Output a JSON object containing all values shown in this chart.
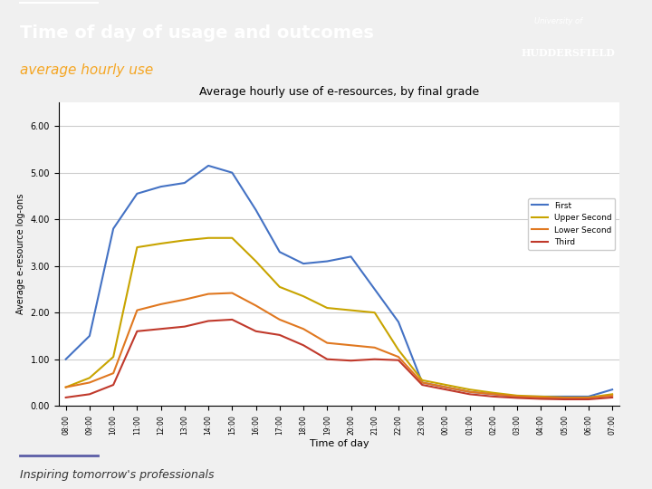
{
  "title_main": "Time of day of usage and outcomes",
  "title_sub": "average hourly use",
  "header_bg": "#5b5ea6",
  "footer_text": "Inspiring tomorrow's professionals",
  "chart_title": "Average hourly use of e-resources, by final grade",
  "xlabel": "Time of day",
  "ylabel": "Average e-resource log-ons",
  "ylim": [
    0,
    6.5
  ],
  "yticks": [
    0.0,
    1.0,
    2.0,
    3.0,
    4.0,
    5.0,
    6.0
  ],
  "time_labels": [
    "08:00",
    "09:00",
    "10:00",
    "11:00",
    "12:00",
    "13:00",
    "14:00",
    "15:00",
    "16:00",
    "17:00",
    "18:00",
    "19:00",
    "20:00",
    "21:00",
    "22:00",
    "23:00",
    "00:00",
    "01:00",
    "02:00",
    "03:00",
    "04:00",
    "05:00",
    "06:00",
    "07:00"
  ],
  "series": {
    "First": {
      "color": "#4472c4",
      "values": [
        1.0,
        1.5,
        3.8,
        4.55,
        4.7,
        4.78,
        5.15,
        5.0,
        4.2,
        3.3,
        3.05,
        3.1,
        3.2,
        2.5,
        1.8,
        0.5,
        0.4,
        0.3,
        0.25,
        0.2,
        0.2,
        0.2,
        0.2,
        0.35
      ]
    },
    "Upper Second": {
      "color": "#c8a400",
      "values": [
        0.4,
        0.6,
        1.05,
        3.4,
        3.48,
        3.55,
        3.6,
        3.6,
        3.1,
        2.55,
        2.35,
        2.1,
        2.05,
        2.0,
        1.2,
        0.55,
        0.45,
        0.35,
        0.28,
        0.22,
        0.2,
        0.18,
        0.18,
        0.25
      ]
    },
    "Lower Second": {
      "color": "#e07820",
      "values": [
        0.4,
        0.5,
        0.7,
        2.05,
        2.18,
        2.28,
        2.4,
        2.42,
        2.15,
        1.85,
        1.65,
        1.35,
        1.3,
        1.25,
        1.05,
        0.5,
        0.4,
        0.3,
        0.25,
        0.2,
        0.18,
        0.17,
        0.17,
        0.22
      ]
    },
    "Third": {
      "color": "#c0392b",
      "values": [
        0.18,
        0.25,
        0.45,
        1.6,
        1.65,
        1.7,
        1.82,
        1.85,
        1.6,
        1.52,
        1.3,
        1.0,
        0.97,
        1.0,
        0.98,
        0.45,
        0.35,
        0.25,
        0.2,
        0.17,
        0.15,
        0.14,
        0.14,
        0.18
      ]
    }
  }
}
